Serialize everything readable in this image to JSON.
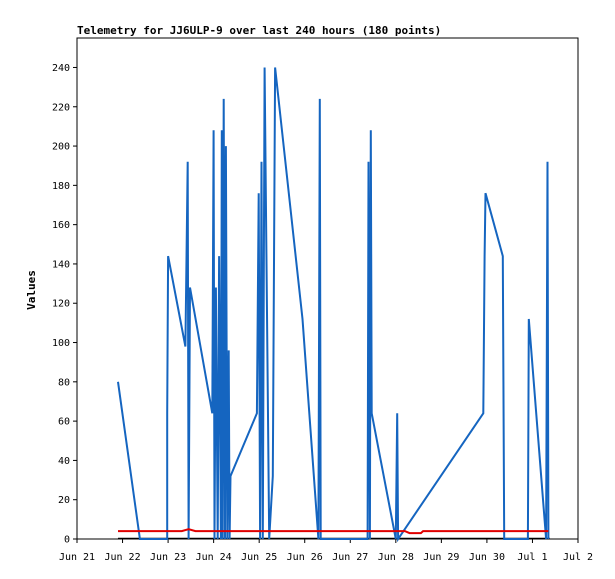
{
  "chart_data": {
    "type": "line",
    "title": "Telemetry for JJ6ULP-9 over last 240 hours (180 points)",
    "ylabel": "Values",
    "xlabel": "",
    "ylim": [
      0,
      255
    ],
    "xlim": [
      0,
      11
    ],
    "yticks": [
      0,
      20,
      40,
      60,
      80,
      100,
      120,
      140,
      160,
      180,
      200,
      220,
      240
    ],
    "xticks": [
      {
        "x": 0,
        "label": "Jun 21"
      },
      {
        "x": 1,
        "label": "Jun 22"
      },
      {
        "x": 2,
        "label": "Jun 23"
      },
      {
        "x": 3,
        "label": "Jun 24"
      },
      {
        "x": 4,
        "label": "Jun 25"
      },
      {
        "x": 5,
        "label": "Jun 26"
      },
      {
        "x": 6,
        "label": "Jun 27"
      },
      {
        "x": 7,
        "label": "Jun 28"
      },
      {
        "x": 8,
        "label": "Jun 29"
      },
      {
        "x": 9,
        "label": "Jun 30"
      },
      {
        "x": 10,
        "label": "Jul 1"
      },
      {
        "x": 11,
        "label": "Jul 2"
      }
    ],
    "grid": false,
    "legend": "none",
    "colors": {
      "series1": "#1565c0",
      "series2": "#e00000",
      "zero_line": "#000000"
    },
    "series": [
      {
        "values": [
          [
            0.9,
            80
          ],
          [
            1.38,
            0
          ],
          [
            1.98,
            0
          ],
          [
            1.98,
            64
          ],
          [
            2.0,
            144
          ],
          [
            2.38,
            98
          ],
          [
            2.43,
            192
          ],
          [
            2.45,
            0
          ],
          [
            2.48,
            128
          ],
          [
            2.97,
            64
          ],
          [
            3.0,
            208
          ],
          [
            3.02,
            0
          ],
          [
            3.05,
            128
          ],
          [
            3.09,
            0
          ],
          [
            3.12,
            144
          ],
          [
            3.16,
            0
          ],
          [
            3.18,
            208
          ],
          [
            3.2,
            0
          ],
          [
            3.22,
            224
          ],
          [
            3.25,
            0
          ],
          [
            3.27,
            200
          ],
          [
            3.3,
            0
          ],
          [
            3.33,
            96
          ],
          [
            3.35,
            0
          ],
          [
            3.37,
            32
          ],
          [
            3.95,
            64
          ],
          [
            3.99,
            176
          ],
          [
            4.02,
            0
          ],
          [
            4.05,
            192
          ],
          [
            4.08,
            0
          ],
          [
            4.12,
            240
          ],
          [
            4.22,
            0
          ],
          [
            4.3,
            32
          ],
          [
            4.35,
            240
          ],
          [
            4.95,
            112
          ],
          [
            5.3,
            0
          ],
          [
            5.33,
            224
          ],
          [
            5.35,
            0
          ],
          [
            6.38,
            0
          ],
          [
            6.4,
            192
          ],
          [
            6.43,
            0
          ],
          [
            6.45,
            208
          ],
          [
            6.47,
            64
          ],
          [
            7.0,
            0
          ],
          [
            7.03,
            64
          ],
          [
            7.05,
            0
          ],
          [
            8.92,
            64
          ],
          [
            8.95,
            144
          ],
          [
            8.97,
            176
          ],
          [
            9.35,
            144
          ],
          [
            9.38,
            0
          ],
          [
            9.9,
            0
          ],
          [
            9.92,
            112
          ],
          [
            10.3,
            0
          ],
          [
            10.33,
            192
          ],
          [
            10.35,
            0
          ]
        ]
      },
      {
        "values": [
          [
            0.9,
            4
          ],
          [
            2.3,
            4
          ],
          [
            2.45,
            5
          ],
          [
            2.6,
            4
          ],
          [
            7.2,
            4
          ],
          [
            7.3,
            3
          ],
          [
            7.55,
            3
          ],
          [
            7.6,
            4
          ],
          [
            8.3,
            4
          ],
          [
            8.35,
            4
          ],
          [
            10.35,
            4
          ]
        ]
      }
    ]
  }
}
